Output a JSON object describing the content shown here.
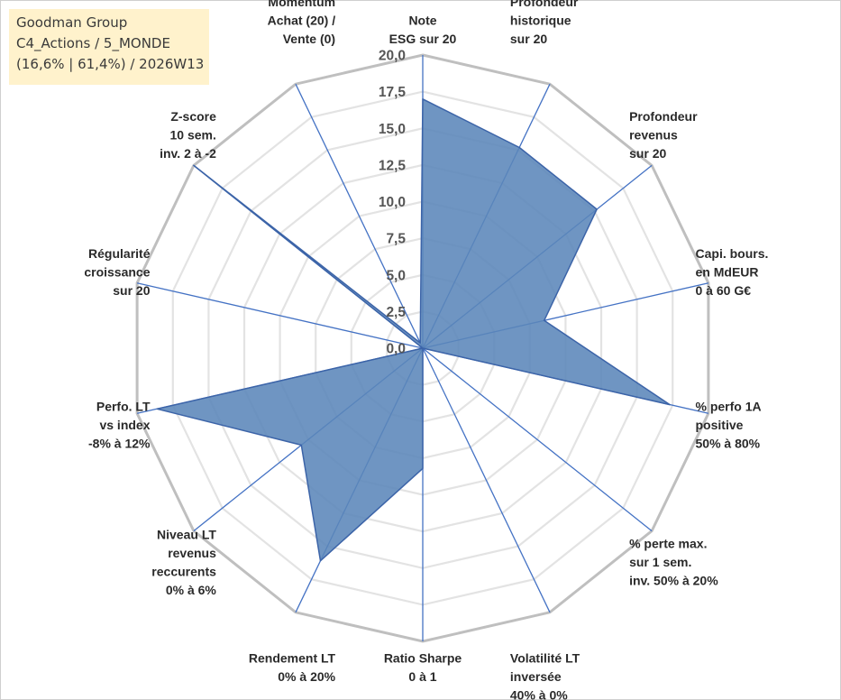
{
  "info": {
    "line1": "Goodman Group",
    "line2": "C4_Actions / 5_MONDE",
    "line3": "(16,6% | 61,4%) / 2026W13"
  },
  "colors": {
    "fill": "#5b86b9",
    "stroke": "#3c64a8",
    "axis": "#4472c4",
    "grid_outer": "#bfbfbf",
    "grid_inner": "#e3e3e3",
    "info_bg": "#fff2cc"
  },
  "chart_data": {
    "type": "radar",
    "range": [
      0,
      20
    ],
    "step": 2.5,
    "grid_levels": 8,
    "tick_labels": [
      "0,0",
      "2,5",
      "5,0",
      "7,5",
      "10,0",
      "12,5",
      "15,0",
      "17,5",
      "20,0"
    ],
    "axes": [
      {
        "lines": [
          "Note",
          "ESG sur 20"
        ],
        "value": 17.0
      },
      {
        "lines": [
          "Profondeur",
          "historique",
          "sur 20"
        ],
        "value": 15.2
      },
      {
        "lines": [
          "Profondeur",
          "revenus",
          "sur 20"
        ],
        "value": 15.2
      },
      {
        "lines": [
          "Capi. bours.",
          "en MdEUR",
          "0 à 60 G€"
        ],
        "value": 8.5
      },
      {
        "lines": [
          "% perfo 1A",
          "positive",
          "50% à 80%"
        ],
        "value": 17.3
      },
      {
        "lines": [
          "% perte max.",
          "sur 1 sem.",
          "inv. 50% à 20%"
        ],
        "value": 0.0
      },
      {
        "lines": [
          "Volatilité LT",
          "inversée",
          "40% à 0%"
        ],
        "value": 0.0
      },
      {
        "lines": [
          "Ratio Sharpe",
          "0 à 1"
        ],
        "value": 8.2
      },
      {
        "lines": [
          "Rendement LT",
          "0% à 20%"
        ],
        "value": 16.1
      },
      {
        "lines": [
          "Niveau LT",
          "revenus",
          "reccurents",
          "0% à 6%"
        ],
        "value": 10.6
      },
      {
        "lines": [
          "Perfo. LT",
          "vs index",
          "-8% à 12%"
        ],
        "value": 18.6
      },
      {
        "lines": [
          "Régularité",
          "croissance",
          "sur 20"
        ],
        "value": 0.0
      },
      {
        "lines": [
          "Z-score",
          "10 sem.",
          "inv. 2 à -2"
        ],
        "value": 20.0
      },
      {
        "lines": [
          "Momentum",
          "Achat (20) /",
          "Vente (0)"
        ],
        "value": 0.4
      }
    ]
  }
}
